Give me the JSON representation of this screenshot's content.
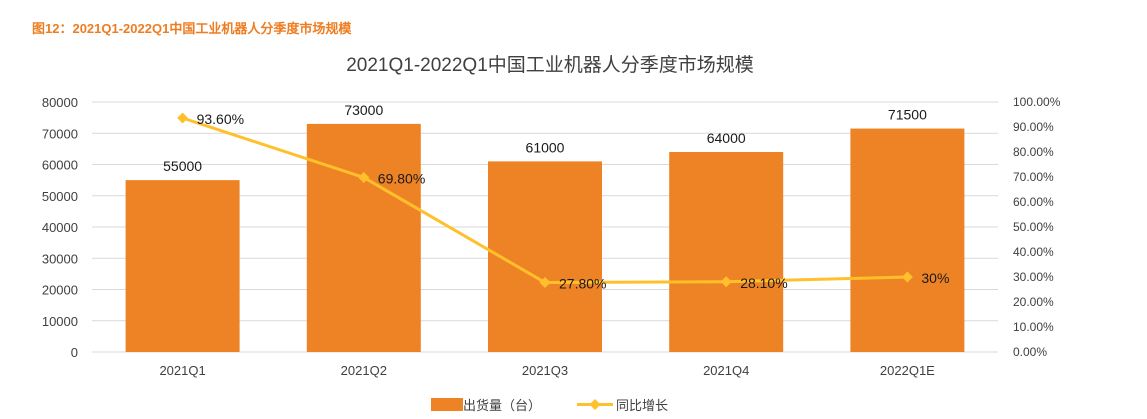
{
  "figure_caption": "图12：2021Q1-2022Q1中国工业机器人分季度市场规模",
  "chart_data": {
    "type": "bar",
    "title": "2021Q1-2022Q1中国工业机器人分季度市场规模",
    "categories": [
      "2021Q1",
      "2021Q2",
      "2021Q3",
      "2021Q4",
      "2022Q1E"
    ],
    "series": [
      {
        "name": "出货量（台）",
        "type": "bar",
        "axis": "left",
        "color": "#ee8326",
        "values": [
          55000,
          73000,
          61000,
          64000,
          71500
        ],
        "labels": [
          "55000",
          "73000",
          "61000",
          "64000",
          "71500"
        ]
      },
      {
        "name": "同比增长",
        "type": "line",
        "axis": "right",
        "color": "#ffc02c",
        "values": [
          93.6,
          69.8,
          27.8,
          28.1,
          30
        ],
        "labels": [
          "93.60%",
          "69.80%",
          "27.80%",
          "28.10%",
          "30%"
        ]
      }
    ],
    "y_left": {
      "ylim": [
        0,
        80000
      ],
      "ticks": [
        "0",
        "10000",
        "20000",
        "30000",
        "40000",
        "50000",
        "60000",
        "70000",
        "80000"
      ]
    },
    "y_right": {
      "ylim": [
        0,
        100
      ],
      "ticks": [
        "0.00%",
        "10.00%",
        "20.00%",
        "30.00%",
        "40.00%",
        "50.00%",
        "60.00%",
        "70.00%",
        "80.00%",
        "90.00%",
        "100.00%"
      ]
    },
    "grid": true,
    "legend_position": "bottom"
  }
}
